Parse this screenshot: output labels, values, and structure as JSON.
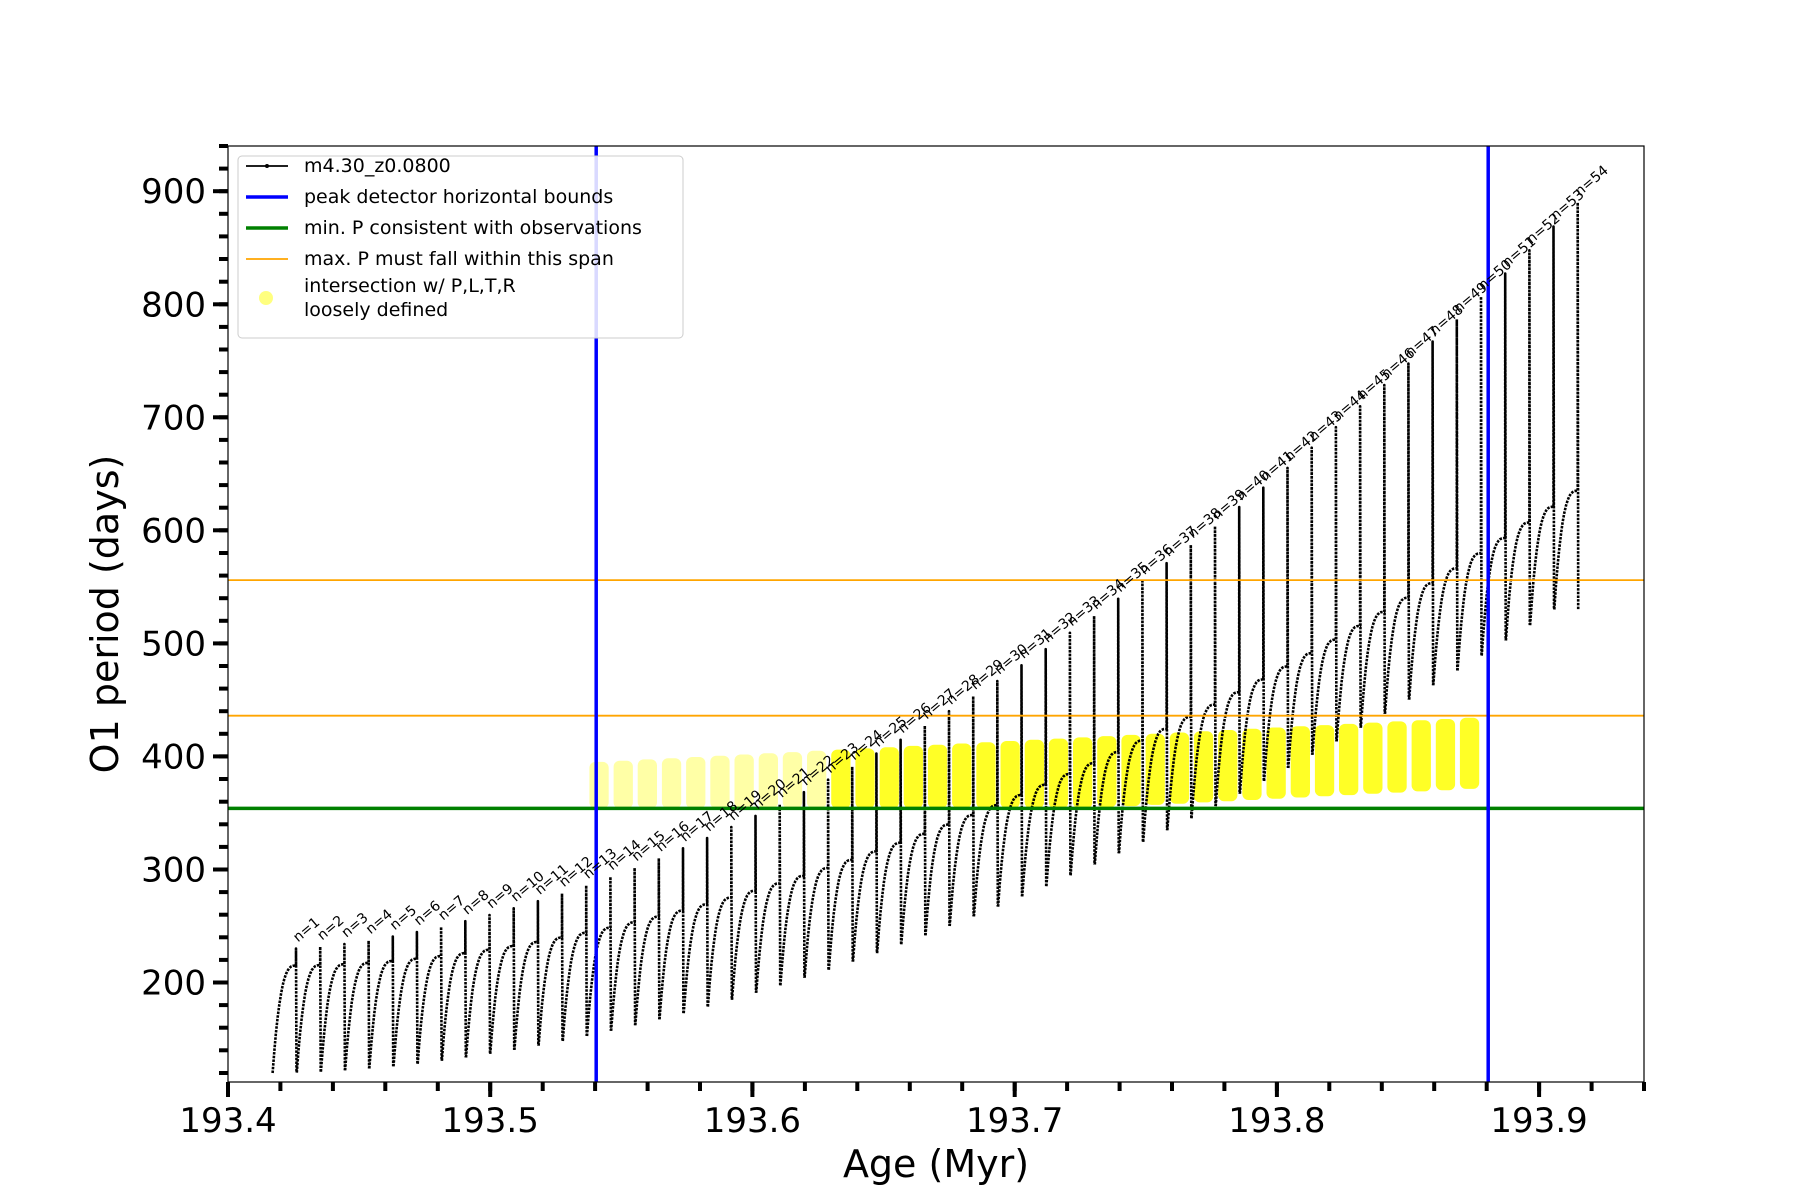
{
  "chart_data": {
    "type": "line",
    "xlabel": "Age (Myr)",
    "ylabel": "O1 period (days)",
    "xlim": [
      193.4,
      193.94
    ],
    "ylim": [
      112,
      940
    ],
    "x_ticks": [
      193.4,
      193.5,
      193.6,
      193.7,
      193.8,
      193.9
    ],
    "x_tick_labels": [
      "193.4",
      "193.5",
      "193.6",
      "193.7",
      "193.8",
      "193.9"
    ],
    "y_ticks": [
      200,
      300,
      400,
      500,
      600,
      700,
      800,
      900
    ],
    "y_tick_labels": [
      "200",
      "300",
      "400",
      "500",
      "600",
      "700",
      "800",
      "900"
    ],
    "grid": false,
    "legend_position": "top-left",
    "legend": [
      {
        "label": "m4.30_z0.0800",
        "style": "line-marker",
        "color": "#000000"
      },
      {
        "label": "peak detector horizontal bounds",
        "style": "line",
        "color": "#0000ff"
      },
      {
        "label": "min. P consistent with observations",
        "style": "line",
        "color": "#008000"
      },
      {
        "label": "max. P must fall within this span",
        "style": "line-thin",
        "color": "#ffa500"
      },
      {
        "label": "intersection w/ P,L,T,R",
        "label2": "loosely defined",
        "style": "dot",
        "color": "#ffff00"
      }
    ],
    "series": [
      {
        "name": "m4.30_z0.0800",
        "color": "#000000",
        "pulses": {
          "n_count": 54,
          "start_x": 193.417,
          "end_x": 193.915,
          "peak_first": 215,
          "peak_last": 635,
          "dip_first": 120,
          "dip_last": 530,
          "spike_first": 230,
          "spike_last": 890
        }
      }
    ],
    "vertical_lines": [
      {
        "name": "peak detector horizontal bounds",
        "x": 193.5404,
        "color": "#0000ff"
      },
      {
        "name": "peak detector horizontal bounds",
        "x": 193.8806,
        "color": "#0000ff"
      }
    ],
    "horizontal_lines": [
      {
        "name": "min. P consistent with observations",
        "y": 354,
        "color": "#008000"
      },
      {
        "name": "max. P must fall within this span",
        "y": 436,
        "color": "#ffa500"
      },
      {
        "name": "max. P must fall within this span",
        "y": 556,
        "color": "#ffa500"
      }
    ],
    "highlight": {
      "name": "intersection w/ P,L,T,R loosely defined",
      "color": "#ffff00",
      "x_range": [
        193.54,
        193.88
      ],
      "y_range": [
        354,
        436
      ]
    },
    "annotations": [
      "n=1",
      "n=2",
      "n=3",
      "n=4",
      "n=5",
      "n=6",
      "n=7",
      "n=8",
      "n=9",
      "n=10",
      "n=11",
      "n=12",
      "n=13",
      "n=14",
      "n=15",
      "n=16",
      "n=17",
      "n=18",
      "n=19",
      "n=20",
      "n=21",
      "n=22",
      "n=23",
      "n=24",
      "n=25",
      "n=26",
      "n=27",
      "n=28",
      "n=29",
      "n=30",
      "n=31",
      "n=32",
      "n=33",
      "n=34",
      "n=35",
      "n=36",
      "n=37",
      "n=38",
      "n=39",
      "n=40",
      "n=41",
      "n=42",
      "n=43",
      "n=44",
      "n=45",
      "n=46",
      "n=47",
      "n=48",
      "n=49",
      "n=50",
      "n=51",
      "n=52",
      "n=53",
      "n=54"
    ]
  }
}
